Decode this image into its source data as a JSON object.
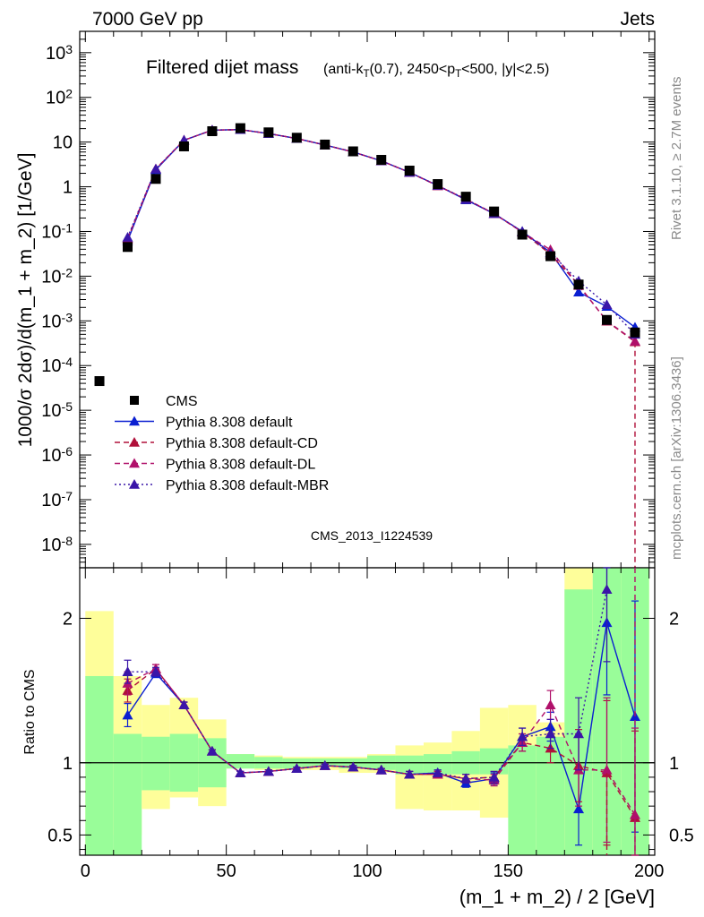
{
  "header": {
    "left": "7000 GeV pp",
    "right": "Jets"
  },
  "side_labels": {
    "rivet": "Rivet 3.1.10, ≥ 2.7M events",
    "mcplots": "mcplots.cern.ch [arXiv:1306.3436]"
  },
  "chart_data": [
    {
      "type": "scatter",
      "title_main": "Filtered dijet mass",
      "title_detail": "(anti-k_T(0.7), 2450<p_T<500, |y|<2.5)",
      "ylabel": "1000/σ 2dσ)/d(m_1 + m_2) [1/GeV]",
      "yscale": "log",
      "ylim": [
        3e-09,
        3000
      ],
      "xlim": [
        -2,
        202
      ],
      "ytick_labels": [
        "10^-8",
        "10^-7",
        "10^-6",
        "10^-5",
        "10^-4",
        "10^-3",
        "10^-2",
        "10^-1",
        "1",
        "10",
        "10^2",
        "10^3"
      ],
      "watermark": "CMS_2013_I1224539",
      "legend_position": "lower-left",
      "x": [
        5,
        15,
        25,
        35,
        45,
        55,
        65,
        75,
        85,
        95,
        105,
        115,
        125,
        135,
        145,
        155,
        165,
        175,
        185,
        195
      ],
      "series": [
        {
          "name": "CMS",
          "marker": "square",
          "color": "#000000",
          "values": [
            4.5e-05,
            0.045,
            1.5,
            8.0,
            17.5,
            20.5,
            16.5,
            12.5,
            8.8,
            6.2,
            4.0,
            2.3,
            1.15,
            0.6,
            0.28,
            0.085,
            0.028,
            0.0065,
            0.00105,
            0.00055
          ]
        },
        {
          "name": "Pythia 8.308 default",
          "marker": "triangle",
          "line": "solid",
          "color": "#0a1fd1",
          "values": [
            null,
            0.062,
            2.4,
            11.0,
            18.5,
            19.0,
            15.5,
            12.0,
            8.6,
            6.0,
            3.8,
            2.1,
            1.07,
            0.51,
            0.25,
            0.1,
            0.034,
            0.0044,
            0.0021,
            0.00072
          ]
        },
        {
          "name": "Pythia 8.308 default-CD",
          "marker": "triangle",
          "line": "dashed",
          "color": "#b0103a",
          "values": [
            null,
            0.067,
            2.5,
            11.0,
            18.5,
            19.0,
            15.5,
            12.0,
            8.6,
            6.0,
            3.8,
            2.1,
            1.05,
            0.53,
            0.25,
            0.097,
            0.031,
            0.0064,
            0.00098,
            0.00034
          ]
        },
        {
          "name": "Pythia 8.308 default-DL",
          "marker": "triangle",
          "line": "dashed",
          "color": "#b0106a",
          "values": [
            null,
            0.07,
            2.5,
            11.0,
            18.5,
            19.0,
            15.5,
            12.0,
            8.6,
            6.0,
            3.8,
            2.1,
            1.05,
            0.53,
            0.25,
            0.097,
            0.039,
            0.0062,
            0.001,
            0.00035
          ]
        },
        {
          "name": "Pythia 8.308 default-MBR",
          "marker": "triangle",
          "line": "dotted",
          "color": "#3a16a8",
          "values": [
            null,
            0.074,
            2.5,
            11.0,
            18.5,
            19.0,
            15.5,
            12.0,
            8.6,
            6.0,
            3.8,
            2.1,
            1.07,
            0.53,
            0.25,
            0.1,
            0.033,
            0.0078,
            0.0023,
            0.0005
          ]
        }
      ]
    },
    {
      "type": "scatter",
      "ylabel": "Ratio to CMS",
      "xlabel": "(m_1 + m_2) / 2 [GeV]",
      "ylim": [
        0.36,
        2.35
      ],
      "xlim": [
        -2,
        202
      ],
      "x_ticks": [
        0,
        50,
        100,
        150,
        200
      ],
      "y_tick_labels": [
        "0.5",
        "1",
        "2"
      ],
      "reference_line": 1,
      "bands": {
        "bin_edges": [
          0,
          10,
          20,
          30,
          40,
          50,
          60,
          70,
          80,
          90,
          100,
          110,
          120,
          130,
          140,
          150,
          160,
          170,
          180,
          190,
          200
        ],
        "green_low": [
          0.36,
          0.36,
          0.81,
          0.8,
          0.83,
          0.96,
          0.96,
          0.96,
          0.98,
          0.96,
          0.95,
          0.92,
          0.92,
          0.92,
          0.92,
          0.36,
          0.36,
          0.36,
          0.36,
          0.36
        ],
        "green_high": [
          1.6,
          1.2,
          1.18,
          1.2,
          1.17,
          1.06,
          1.04,
          1.03,
          1.03,
          1.03,
          1.05,
          1.05,
          1.06,
          1.08,
          1.1,
          1.12,
          1.18,
          2.2,
          2.35,
          2.35
        ],
        "yellow_low": [
          0.36,
          0.5,
          0.68,
          0.76,
          0.7,
          0.96,
          0.95,
          0.95,
          0.95,
          0.93,
          0.93,
          0.68,
          0.67,
          0.67,
          0.62,
          0.62,
          0.36,
          0.36,
          0.36,
          0.36
        ],
        "yellow_high": [
          2.05,
          1.6,
          1.4,
          1.45,
          1.3,
          1.06,
          1.05,
          1.04,
          1.04,
          1.04,
          1.06,
          1.12,
          1.14,
          1.22,
          1.38,
          1.4,
          1.28,
          2.35,
          2.35,
          2.35
        ],
        "green_color": "#99fd99",
        "yellow_color": "#fefe9a"
      },
      "series": [
        {
          "name": "Pythia 8.308 default",
          "values": [
            null,
            1.33,
            1.62,
            1.4,
            1.08,
            0.93,
            0.94,
            0.96,
            0.98,
            0.97,
            0.95,
            0.92,
            0.93,
            0.86,
            0.89,
            1.18,
            1.25,
            0.68,
            1.97,
            1.32
          ],
          "err": [
            null,
            0.08,
            0.03,
            0.02,
            0.01,
            0.01,
            0.01,
            0.01,
            0.01,
            0.01,
            0.01,
            0.02,
            0.02,
            0.03,
            0.04,
            0.06,
            0.1,
            0.25,
            0.5,
            0.8
          ]
        },
        {
          "name": "Pythia 8.308 default-CD",
          "values": [
            null,
            1.5,
            1.65,
            1.4,
            1.08,
            0.93,
            0.94,
            0.96,
            0.98,
            0.97,
            0.95,
            0.92,
            0.92,
            0.89,
            0.9,
            1.14,
            1.1,
            0.98,
            0.93,
            0.62
          ],
          "err": [
            null,
            0.08,
            0.03,
            0.02,
            0.01,
            0.01,
            0.01,
            0.01,
            0.01,
            0.01,
            0.01,
            0.02,
            0.02,
            0.03,
            0.04,
            0.06,
            0.1,
            0.25,
            0.5,
            0.6
          ]
        },
        {
          "name": "Pythia 8.308 default-DL",
          "values": [
            null,
            1.55,
            1.65,
            1.4,
            1.08,
            0.93,
            0.94,
            0.96,
            0.98,
            0.97,
            0.95,
            0.92,
            0.92,
            0.89,
            0.88,
            1.14,
            1.4,
            0.95,
            0.95,
            0.64
          ],
          "err": [
            null,
            0.08,
            0.03,
            0.02,
            0.01,
            0.01,
            0.01,
            0.01,
            0.01,
            0.01,
            0.01,
            0.02,
            0.02,
            0.03,
            0.04,
            0.06,
            0.1,
            0.25,
            0.5,
            0.6
          ]
        },
        {
          "name": "Pythia 8.308 default-MBR",
          "values": [
            null,
            1.63,
            1.63,
            1.4,
            1.08,
            0.93,
            0.94,
            0.96,
            0.98,
            0.97,
            0.95,
            0.92,
            0.93,
            0.89,
            0.9,
            1.18,
            1.2,
            1.2,
            2.2,
            null
          ],
          "err": [
            null,
            0.08,
            0.03,
            0.02,
            0.01,
            0.01,
            0.01,
            0.01,
            0.01,
            0.01,
            0.01,
            0.02,
            0.02,
            0.03,
            0.04,
            0.06,
            0.1,
            0.25,
            0.5,
            null
          ]
        }
      ]
    }
  ]
}
